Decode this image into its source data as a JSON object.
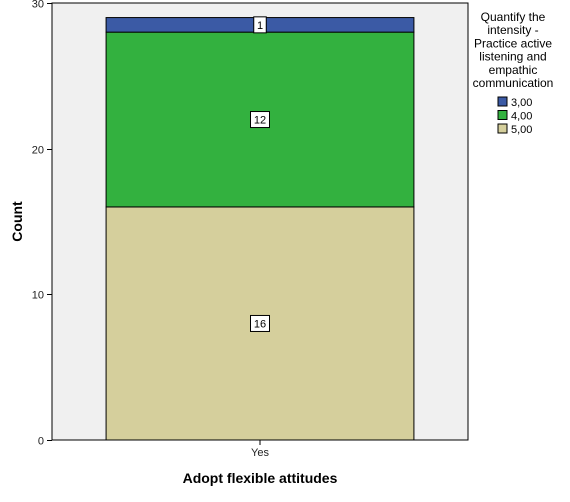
{
  "chart_data": {
    "type": "bar",
    "stacked": true,
    "categories": [
      "Yes"
    ],
    "series": [
      {
        "name": "5,00",
        "values": [
          16
        ],
        "color": "#d5cf9c"
      },
      {
        "name": "4,00",
        "values": [
          12
        ],
        "color": "#33b13f"
      },
      {
        "name": "3,00",
        "values": [
          1
        ],
        "color": "#3b5aa5"
      }
    ],
    "data_labels": true,
    "xlabel": "Adopt flexible attitudes",
    "ylabel": "Count",
    "ylim": [
      0,
      30
    ],
    "yticks": [
      0,
      10,
      20,
      30
    ],
    "legend": {
      "title": [
        "Quantify the",
        "intensity -",
        "Practice active",
        "listening and",
        "empathic",
        "communication"
      ],
      "order": [
        "3,00",
        "4,00",
        "5,00"
      ],
      "position": "right"
    },
    "plot_background": "#f0f0f0",
    "grid": false
  }
}
